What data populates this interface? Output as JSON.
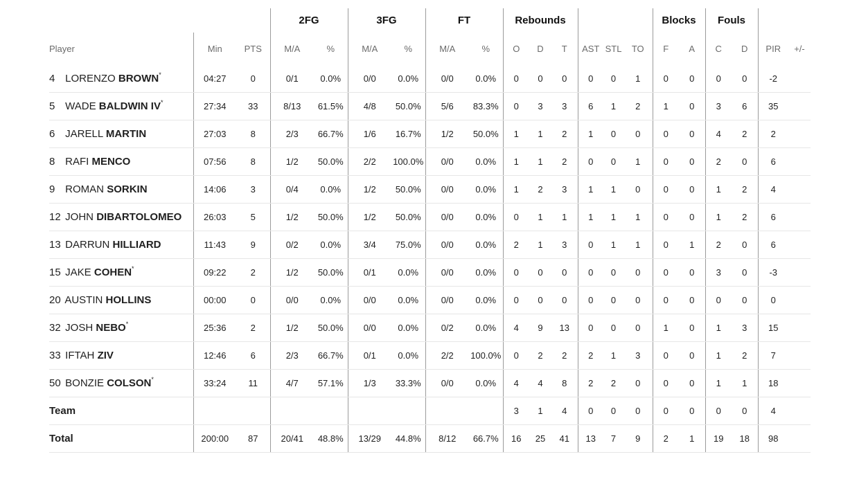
{
  "groups": {
    "fg2": "2FG",
    "fg3": "3FG",
    "ft": "FT",
    "reb": "Rebounds",
    "blk": "Blocks",
    "fouls": "Fouls"
  },
  "headers": {
    "player": "Player",
    "min": "Min",
    "pts": "PTS",
    "fg2_ma": "M/A",
    "fg2_pct": "%",
    "fg3_ma": "M/A",
    "fg3_pct": "%",
    "ft_ma": "M/A",
    "ft_pct": "%",
    "reb_o": "O",
    "reb_d": "D",
    "reb_t": "T",
    "ast": "AST",
    "stl": "STL",
    "to": "TO",
    "blk_f": "F",
    "blk_a": "A",
    "foul_c": "C",
    "foul_d": "D",
    "pir": "PIR",
    "pm": "+/-"
  },
  "players": [
    {
      "num": "4",
      "first": "LORENZO",
      "last": "BROWN",
      "star": "*",
      "min": "04:27",
      "pts": "0",
      "fg2_ma": "0/1",
      "fg2_pct": "0.0%",
      "fg3_ma": "0/0",
      "fg3_pct": "0.0%",
      "ft_ma": "0/0",
      "ft_pct": "0.0%",
      "o": "0",
      "d": "0",
      "t": "0",
      "ast": "0",
      "stl": "0",
      "to": "1",
      "bf": "0",
      "ba": "0",
      "fc": "0",
      "fd": "0",
      "pir": "-2",
      "pm": ""
    },
    {
      "num": "5",
      "first": "WADE",
      "last": "BALDWIN IV",
      "star": "*",
      "min": "27:34",
      "pts": "33",
      "fg2_ma": "8/13",
      "fg2_pct": "61.5%",
      "fg3_ma": "4/8",
      "fg3_pct": "50.0%",
      "ft_ma": "5/6",
      "ft_pct": "83.3%",
      "o": "0",
      "d": "3",
      "t": "3",
      "ast": "6",
      "stl": "1",
      "to": "2",
      "bf": "1",
      "ba": "0",
      "fc": "3",
      "fd": "6",
      "pir": "35",
      "pm": ""
    },
    {
      "num": "6",
      "first": "JARELL",
      "last": "MARTIN",
      "star": "",
      "min": "27:03",
      "pts": "8",
      "fg2_ma": "2/3",
      "fg2_pct": "66.7%",
      "fg3_ma": "1/6",
      "fg3_pct": "16.7%",
      "ft_ma": "1/2",
      "ft_pct": "50.0%",
      "o": "1",
      "d": "1",
      "t": "2",
      "ast": "1",
      "stl": "0",
      "to": "0",
      "bf": "0",
      "ba": "0",
      "fc": "4",
      "fd": "2",
      "pir": "2",
      "pm": ""
    },
    {
      "num": "8",
      "first": "RAFI",
      "last": "MENCO",
      "star": "",
      "min": "07:56",
      "pts": "8",
      "fg2_ma": "1/2",
      "fg2_pct": "50.0%",
      "fg3_ma": "2/2",
      "fg3_pct": "100.0%",
      "ft_ma": "0/0",
      "ft_pct": "0.0%",
      "o": "1",
      "d": "1",
      "t": "2",
      "ast": "0",
      "stl": "0",
      "to": "1",
      "bf": "0",
      "ba": "0",
      "fc": "2",
      "fd": "0",
      "pir": "6",
      "pm": ""
    },
    {
      "num": "9",
      "first": "ROMAN",
      "last": "SORKIN",
      "star": "",
      "min": "14:06",
      "pts": "3",
      "fg2_ma": "0/4",
      "fg2_pct": "0.0%",
      "fg3_ma": "1/2",
      "fg3_pct": "50.0%",
      "ft_ma": "0/0",
      "ft_pct": "0.0%",
      "o": "1",
      "d": "2",
      "t": "3",
      "ast": "1",
      "stl": "1",
      "to": "0",
      "bf": "0",
      "ba": "0",
      "fc": "1",
      "fd": "2",
      "pir": "4",
      "pm": ""
    },
    {
      "num": "12",
      "first": "JOHN",
      "last": "DIBARTOLOMEO",
      "star": "",
      "min": "26:03",
      "pts": "5",
      "fg2_ma": "1/2",
      "fg2_pct": "50.0%",
      "fg3_ma": "1/2",
      "fg3_pct": "50.0%",
      "ft_ma": "0/0",
      "ft_pct": "0.0%",
      "o": "0",
      "d": "1",
      "t": "1",
      "ast": "1",
      "stl": "1",
      "to": "1",
      "bf": "0",
      "ba": "0",
      "fc": "1",
      "fd": "2",
      "pir": "6",
      "pm": ""
    },
    {
      "num": "13",
      "first": "DARRUN",
      "last": "HILLIARD",
      "star": "",
      "min": "11:43",
      "pts": "9",
      "fg2_ma": "0/2",
      "fg2_pct": "0.0%",
      "fg3_ma": "3/4",
      "fg3_pct": "75.0%",
      "ft_ma": "0/0",
      "ft_pct": "0.0%",
      "o": "2",
      "d": "1",
      "t": "3",
      "ast": "0",
      "stl": "1",
      "to": "1",
      "bf": "0",
      "ba": "1",
      "fc": "2",
      "fd": "0",
      "pir": "6",
      "pm": ""
    },
    {
      "num": "15",
      "first": "JAKE",
      "last": "COHEN",
      "star": "*",
      "min": "09:22",
      "pts": "2",
      "fg2_ma": "1/2",
      "fg2_pct": "50.0%",
      "fg3_ma": "0/1",
      "fg3_pct": "0.0%",
      "ft_ma": "0/0",
      "ft_pct": "0.0%",
      "o": "0",
      "d": "0",
      "t": "0",
      "ast": "0",
      "stl": "0",
      "to": "0",
      "bf": "0",
      "ba": "0",
      "fc": "3",
      "fd": "0",
      "pir": "-3",
      "pm": ""
    },
    {
      "num": "20",
      "first": "AUSTIN",
      "last": "HOLLINS",
      "star": "",
      "min": "00:00",
      "pts": "0",
      "fg2_ma": "0/0",
      "fg2_pct": "0.0%",
      "fg3_ma": "0/0",
      "fg3_pct": "0.0%",
      "ft_ma": "0/0",
      "ft_pct": "0.0%",
      "o": "0",
      "d": "0",
      "t": "0",
      "ast": "0",
      "stl": "0",
      "to": "0",
      "bf": "0",
      "ba": "0",
      "fc": "0",
      "fd": "0",
      "pir": "0",
      "pm": ""
    },
    {
      "num": "32",
      "first": "JOSH",
      "last": "NEBO",
      "star": "*",
      "min": "25:36",
      "pts": "2",
      "fg2_ma": "1/2",
      "fg2_pct": "50.0%",
      "fg3_ma": "0/0",
      "fg3_pct": "0.0%",
      "ft_ma": "0/2",
      "ft_pct": "0.0%",
      "o": "4",
      "d": "9",
      "t": "13",
      "ast": "0",
      "stl": "0",
      "to": "0",
      "bf": "1",
      "ba": "0",
      "fc": "1",
      "fd": "3",
      "pir": "15",
      "pm": ""
    },
    {
      "num": "33",
      "first": "IFTAH",
      "last": "ZIV",
      "star": "",
      "min": "12:46",
      "pts": "6",
      "fg2_ma": "2/3",
      "fg2_pct": "66.7%",
      "fg3_ma": "0/1",
      "fg3_pct": "0.0%",
      "ft_ma": "2/2",
      "ft_pct": "100.0%",
      "o": "0",
      "d": "2",
      "t": "2",
      "ast": "2",
      "stl": "1",
      "to": "3",
      "bf": "0",
      "ba": "0",
      "fc": "1",
      "fd": "2",
      "pir": "7",
      "pm": ""
    },
    {
      "num": "50",
      "first": "BONZIE",
      "last": "COLSON",
      "star": "*",
      "min": "33:24",
      "pts": "11",
      "fg2_ma": "4/7",
      "fg2_pct": "57.1%",
      "fg3_ma": "1/3",
      "fg3_pct": "33.3%",
      "ft_ma": "0/0",
      "ft_pct": "0.0%",
      "o": "4",
      "d": "4",
      "t": "8",
      "ast": "2",
      "stl": "2",
      "to": "0",
      "bf": "0",
      "ba": "0",
      "fc": "1",
      "fd": "1",
      "pir": "18",
      "pm": ""
    }
  ],
  "team": {
    "label": "Team",
    "min": "",
    "pts": "",
    "fg2_ma": "",
    "fg2_pct": "",
    "fg3_ma": "",
    "fg3_pct": "",
    "ft_ma": "",
    "ft_pct": "",
    "o": "3",
    "d": "1",
    "t": "4",
    "ast": "0",
    "stl": "0",
    "to": "0",
    "bf": "0",
    "ba": "0",
    "fc": "0",
    "fd": "0",
    "pir": "4",
    "pm": ""
  },
  "total": {
    "label": "Total",
    "min": "200:00",
    "pts": "87",
    "fg2_ma": "20/41",
    "fg2_pct": "48.8%",
    "fg3_ma": "13/29",
    "fg3_pct": "44.8%",
    "ft_ma": "8/12",
    "ft_pct": "66.7%",
    "o": "16",
    "d": "25",
    "t": "41",
    "ast": "13",
    "stl": "7",
    "to": "9",
    "bf": "2",
    "ba": "1",
    "fc": "19",
    "fd": "18",
    "pir": "98",
    "pm": ""
  }
}
